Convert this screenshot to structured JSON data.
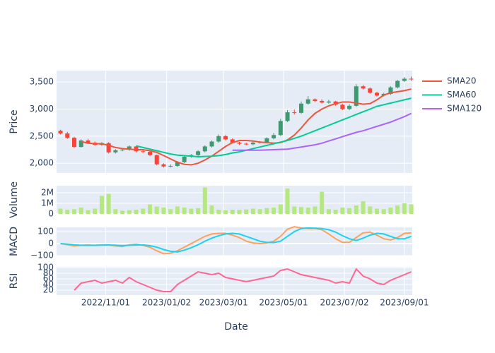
{
  "chart_data": [
    {
      "type": "candlestick",
      "ylabel": "Price",
      "x": [
        "2022-09-16",
        "2022-09-23",
        "2022-09-30",
        "2022-10-07",
        "2022-10-14",
        "2022-10-21",
        "2022-10-28",
        "2022-11-04",
        "2022-11-11",
        "2022-11-18",
        "2022-11-25",
        "2022-12-02",
        "2022-12-09",
        "2022-12-16",
        "2022-12-23",
        "2022-12-30",
        "2023-01-06",
        "2023-01-13",
        "2023-01-20",
        "2023-01-27",
        "2023-02-03",
        "2023-02-10",
        "2023-02-17",
        "2023-02-24",
        "2023-03-03",
        "2023-03-10",
        "2023-03-17",
        "2023-03-24",
        "2023-03-31",
        "2023-04-07",
        "2023-04-14",
        "2023-04-21",
        "2023-04-28",
        "2023-05-05",
        "2023-05-12",
        "2023-05-19",
        "2023-05-26",
        "2023-06-02",
        "2023-06-09",
        "2023-06-16",
        "2023-06-23",
        "2023-06-30",
        "2023-07-07",
        "2023-07-14",
        "2023-07-21",
        "2023-07-28",
        "2023-08-04",
        "2023-08-11",
        "2023-08-18",
        "2023-08-25",
        "2023-09-01",
        "2023-09-08"
      ],
      "xlim": [
        "2022-09-12",
        "2023-09-09"
      ],
      "xticks": [
        {
          "value": "2022-11-01",
          "label": "2022/11/01"
        },
        {
          "value": "2023-01-02",
          "label": "2023/01/02"
        },
        {
          "value": "2023-03-01",
          "label": "2023/03/01"
        },
        {
          "value": "2023-05-01",
          "label": "2023/05/01"
        },
        {
          "value": "2023-07-02",
          "label": "2023/07/02"
        },
        {
          "value": "2023-09-01",
          "label": "2023/09/01"
        }
      ],
      "open": [
        2600,
        2550,
        2470,
        2300,
        2420,
        2380,
        2340,
        2370,
        2200,
        2240,
        2250,
        2310,
        2220,
        2210,
        2150,
        1980,
        1940,
        1950,
        2020,
        2120,
        2150,
        2220,
        2310,
        2400,
        2500,
        2440,
        2380,
        2360,
        2350,
        2380,
        2390,
        2460,
        2520,
        2780,
        2940,
        2930,
        3100,
        3180,
        3150,
        3120,
        3140,
        3080,
        3000,
        3060,
        3420,
        3380,
        3300,
        3250,
        3280,
        3400,
        3520,
        3560
      ],
      "high": [
        2620,
        2580,
        2490,
        2440,
        2450,
        2400,
        2390,
        2390,
        2260,
        2270,
        2330,
        2320,
        2250,
        2230,
        2160,
        2000,
        1980,
        2040,
        2140,
        2170,
        2240,
        2330,
        2420,
        2530,
        2520,
        2460,
        2400,
        2380,
        2400,
        2410,
        2480,
        2560,
        2820,
        2980,
        2990,
        3140,
        3240,
        3200,
        3180,
        3170,
        3150,
        3100,
        3090,
        3460,
        3450,
        3400,
        3320,
        3300,
        3420,
        3540,
        3590,
        3600
      ],
      "low": [
        2530,
        2450,
        2280,
        2290,
        2360,
        2320,
        2320,
        2180,
        2180,
        2220,
        2230,
        2200,
        2190,
        2130,
        1960,
        1920,
        1920,
        1930,
        2000,
        2100,
        2130,
        2200,
        2290,
        2380,
        2420,
        2360,
        2340,
        2330,
        2330,
        2360,
        2370,
        2440,
        2500,
        2760,
        2900,
        2910,
        3080,
        3130,
        3100,
        3100,
        3060,
        2980,
        2980,
        3040,
        3360,
        3280,
        3230,
        3230,
        3260,
        3380,
        3500,
        3520
      ],
      "close": [
        2550,
        2470,
        2300,
        2420,
        2380,
        2340,
        2370,
        2200,
        2240,
        2250,
        2310,
        2220,
        2210,
        2150,
        1980,
        1940,
        1950,
        2020,
        2120,
        2150,
        2220,
        2310,
        2400,
        2500,
        2440,
        2380,
        2360,
        2350,
        2380,
        2390,
        2460,
        2520,
        2780,
        2940,
        2930,
        3100,
        3180,
        3150,
        3120,
        3140,
        3080,
        3000,
        3060,
        3420,
        3380,
        3300,
        3250,
        3280,
        3400,
        3520,
        3560,
        3550
      ],
      "increasing_color": "#3D9970",
      "decreasing_color": "#FF4136",
      "series": [
        {
          "name": "SMA20",
          "color": "#EF553B",
          "values": [
            null,
            null,
            null,
            2400,
            2370,
            2360,
            2360,
            2330,
            2290,
            2270,
            2260,
            2250,
            2250,
            2230,
            2200,
            2140,
            2080,
            2020,
            1980,
            1970,
            2000,
            2060,
            2130,
            2220,
            2310,
            2380,
            2420,
            2420,
            2410,
            2390,
            2380,
            2370,
            2380,
            2430,
            2520,
            2650,
            2800,
            2920,
            3000,
            3060,
            3100,
            3130,
            3130,
            3110,
            3090,
            3100,
            3170,
            3260,
            3300,
            3320,
            3340,
            3370
          ]
        },
        {
          "name": "SMA60",
          "color": "#00CC96",
          "values": [
            null,
            null,
            null,
            null,
            null,
            null,
            null,
            null,
            null,
            null,
            null,
            2320,
            2290,
            2260,
            2230,
            2200,
            2170,
            2150,
            2140,
            2130,
            2120,
            2125,
            2130,
            2140,
            2160,
            2190,
            2210,
            2240,
            2270,
            2300,
            2330,
            2360,
            2390,
            2420,
            2460,
            2500,
            2550,
            2600,
            2650,
            2700,
            2750,
            2800,
            2850,
            2900,
            2950,
            3000,
            3050,
            3080,
            3110,
            3140,
            3170,
            3200
          ]
        },
        {
          "name": "SMA120",
          "color": "#AB63FA",
          "values": [
            null,
            null,
            null,
            null,
            null,
            null,
            null,
            null,
            null,
            null,
            null,
            null,
            null,
            null,
            null,
            null,
            null,
            null,
            null,
            null,
            null,
            null,
            null,
            null,
            null,
            2240,
            2240,
            2240,
            2240,
            2240,
            2245,
            2250,
            2255,
            2260,
            2280,
            2300,
            2320,
            2340,
            2370,
            2410,
            2450,
            2490,
            2530,
            2570,
            2600,
            2640,
            2680,
            2720,
            2760,
            2810,
            2860,
            2920
          ]
        }
      ],
      "ylim": [
        1820,
        3710
      ],
      "yticks": [
        {
          "value": 2000,
          "label": "2,000"
        },
        {
          "value": 2500,
          "label": "2,500"
        },
        {
          "value": 3000,
          "label": "3,000"
        },
        {
          "value": 3500,
          "label": "3,500"
        }
      ],
      "grid": true,
      "legend": "right"
    },
    {
      "type": "bar",
      "ylabel": "Volume",
      "color": "#B6E880",
      "values": [
        500000,
        400000,
        450000,
        600000,
        350000,
        500000,
        1700000,
        1900000,
        450000,
        300000,
        350000,
        400000,
        500000,
        900000,
        700000,
        600000,
        450000,
        700000,
        600000,
        500000,
        550000,
        2500000,
        800000,
        400000,
        350000,
        400000,
        380000,
        420000,
        500000,
        450000,
        550000,
        600000,
        900000,
        2400000,
        700000,
        650000,
        600000,
        700000,
        2100000,
        450000,
        400000,
        600000,
        550000,
        800000,
        1200000,
        700000,
        500000,
        450000,
        600000,
        800000,
        1000000,
        900000
      ],
      "ylim": [
        0,
        2670000
      ],
      "yticks": [
        0,
        {
          "value": 1000000,
          "label": "1M"
        },
        {
          "value": 2000000,
          "label": "2M"
        }
      ],
      "grid": true
    },
    {
      "type": "line",
      "ylabel": "MACD",
      "series": [
        {
          "color": "#FFA15A",
          "values": [
            0,
            -10,
            -20,
            -15,
            -12,
            -15,
            -10,
            -12,
            -20,
            -25,
            -10,
            -5,
            -15,
            -30,
            -60,
            -85,
            -80,
            -60,
            -30,
            0,
            30,
            60,
            80,
            85,
            85,
            70,
            50,
            20,
            5,
            0,
            5,
            20,
            60,
            120,
            140,
            130,
            125,
            125,
            115,
            80,
            40,
            10,
            10,
            50,
            90,
            95,
            70,
            40,
            30,
            50,
            85,
            90
          ]
        },
        {
          "color": "#19D3F3",
          "values": [
            0,
            -5,
            -10,
            -15,
            -15,
            -15,
            -13,
            -12,
            -14,
            -17,
            -15,
            -12,
            -12,
            -18,
            -30,
            -50,
            -65,
            -70,
            -55,
            -35,
            -10,
            20,
            45,
            65,
            80,
            85,
            80,
            60,
            40,
            20,
            10,
            8,
            20,
            60,
            100,
            125,
            130,
            128,
            125,
            115,
            95,
            65,
            40,
            25,
            45,
            70,
            85,
            80,
            60,
            40,
            40,
            60
          ]
        }
      ],
      "ylim": [
        -100,
        135
      ],
      "yticks": [
        {
          "value": -100,
          "label": "−100"
        },
        0,
        100
      ],
      "grid": true
    },
    {
      "type": "line",
      "ylabel": "RSI",
      "xlabel": "Date",
      "series": [
        {
          "color": "#FF6692",
          "values": [
            null,
            null,
            20,
            45,
            50,
            55,
            45,
            50,
            55,
            45,
            65,
            50,
            40,
            30,
            20,
            15,
            15,
            40,
            55,
            70,
            85,
            80,
            75,
            80,
            65,
            60,
            55,
            50,
            55,
            60,
            65,
            70,
            90,
            95,
            85,
            75,
            70,
            65,
            60,
            55,
            45,
            50,
            45,
            95,
            70,
            60,
            45,
            40,
            55,
            65,
            75,
            85
          ]
        }
      ],
      "ylim": [
        2.5,
        102.5
      ],
      "yticks": [
        20,
        40,
        60,
        80,
        100
      ],
      "grid": true
    }
  ]
}
